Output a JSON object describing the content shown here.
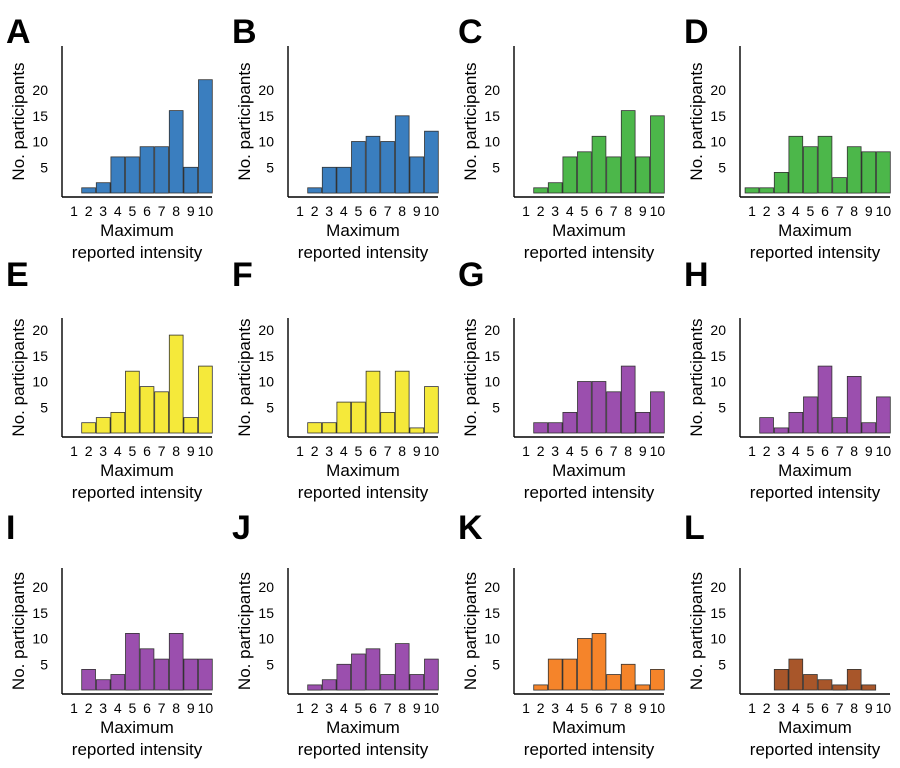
{
  "figure": {
    "ylabel": "No. participants",
    "xlabel_line1": "Maximum",
    "xlabel_line2": "reported intensity",
    "yticks": [
      5,
      10,
      15,
      20
    ],
    "xticks": [
      1,
      2,
      3,
      4,
      5,
      6,
      7,
      8,
      9,
      10
    ]
  },
  "colors": {
    "blue": "#3a7ebf",
    "green": "#4cb74a",
    "yellow": "#f5e93a",
    "purple": "#9b4fae",
    "orange": "#f5842a",
    "brown": "#a8562a"
  },
  "chart_data": [
    {
      "type": "bar",
      "panel": "A",
      "color": "blue",
      "categories": [
        1,
        2,
        3,
        4,
        5,
        6,
        7,
        8,
        9,
        10
      ],
      "values": [
        0,
        1,
        2,
        7,
        7,
        9,
        9,
        16,
        5,
        22
      ],
      "ylim": [
        0,
        22
      ],
      "xlabel": "Maximum reported intensity",
      "ylabel": "No. participants"
    },
    {
      "type": "bar",
      "panel": "B",
      "color": "blue",
      "categories": [
        1,
        2,
        3,
        4,
        5,
        6,
        7,
        8,
        9,
        10
      ],
      "values": [
        0,
        1,
        5,
        5,
        10,
        11,
        10,
        15,
        7,
        12
      ],
      "ylim": [
        0,
        22
      ],
      "xlabel": "Maximum reported intensity",
      "ylabel": "No. participants"
    },
    {
      "type": "bar",
      "panel": "C",
      "color": "green",
      "categories": [
        1,
        2,
        3,
        4,
        5,
        6,
        7,
        8,
        9,
        10
      ],
      "values": [
        0,
        1,
        2,
        7,
        8,
        11,
        7,
        16,
        7,
        15
      ],
      "ylim": [
        0,
        22
      ],
      "xlabel": "Maximum reported intensity",
      "ylabel": "No. participants"
    },
    {
      "type": "bar",
      "panel": "D",
      "color": "green",
      "categories": [
        1,
        2,
        3,
        4,
        5,
        6,
        7,
        8,
        9,
        10
      ],
      "values": [
        1,
        1,
        4,
        11,
        9,
        11,
        3,
        9,
        8,
        8
      ],
      "ylim": [
        0,
        22
      ],
      "xlabel": "Maximum reported intensity",
      "ylabel": "No. participants"
    },
    {
      "type": "bar",
      "panel": "E",
      "color": "yellow",
      "categories": [
        1,
        2,
        3,
        4,
        5,
        6,
        7,
        8,
        9,
        10
      ],
      "values": [
        0,
        2,
        3,
        4,
        12,
        9,
        8,
        19,
        3,
        13
      ],
      "ylim": [
        0,
        20
      ],
      "xlabel": "Maximum reported intensity",
      "ylabel": "No. participants"
    },
    {
      "type": "bar",
      "panel": "F",
      "color": "yellow",
      "categories": [
        1,
        2,
        3,
        4,
        5,
        6,
        7,
        8,
        9,
        10
      ],
      "values": [
        0,
        2,
        2,
        6,
        6,
        12,
        4,
        12,
        1,
        9
      ],
      "ylim": [
        0,
        20
      ],
      "xlabel": "Maximum reported intensity",
      "ylabel": "No. participants"
    },
    {
      "type": "bar",
      "panel": "G",
      "color": "purple",
      "categories": [
        1,
        2,
        3,
        4,
        5,
        6,
        7,
        8,
        9,
        10
      ],
      "values": [
        0,
        2,
        2,
        4,
        10,
        10,
        8,
        13,
        4,
        8
      ],
      "ylim": [
        0,
        20
      ],
      "xlabel": "Maximum reported intensity",
      "ylabel": "No. participants"
    },
    {
      "type": "bar",
      "panel": "H",
      "color": "purple",
      "categories": [
        1,
        2,
        3,
        4,
        5,
        6,
        7,
        8,
        9,
        10
      ],
      "values": [
        0,
        3,
        1,
        4,
        7,
        13,
        3,
        11,
        2,
        7
      ],
      "ylim": [
        0,
        20
      ],
      "xlabel": "Maximum reported intensity",
      "ylabel": "No. participants"
    },
    {
      "type": "bar",
      "panel": "I",
      "color": "purple",
      "categories": [
        1,
        2,
        3,
        4,
        5,
        6,
        7,
        8,
        9,
        10
      ],
      "values": [
        0,
        4,
        2,
        3,
        11,
        8,
        6,
        11,
        6,
        6
      ],
      "ylim": [
        0,
        20
      ],
      "xlabel": "Maximum reported intensity",
      "ylabel": "No. participants"
    },
    {
      "type": "bar",
      "panel": "J",
      "color": "purple",
      "categories": [
        1,
        2,
        3,
        4,
        5,
        6,
        7,
        8,
        9,
        10
      ],
      "values": [
        0,
        1,
        2,
        5,
        7,
        8,
        3,
        9,
        3,
        6
      ],
      "ylim": [
        0,
        20
      ],
      "xlabel": "Maximum reported intensity",
      "ylabel": "No. participants"
    },
    {
      "type": "bar",
      "panel": "K",
      "color": "orange",
      "categories": [
        1,
        2,
        3,
        4,
        5,
        6,
        7,
        8,
        9,
        10
      ],
      "values": [
        0,
        1,
        6,
        6,
        10,
        11,
        3,
        5,
        1,
        4
      ],
      "ylim": [
        0,
        20
      ],
      "xlabel": "Maximum reported intensity",
      "ylabel": "No. participants"
    },
    {
      "type": "bar",
      "panel": "L",
      "color": "brown",
      "categories": [
        1,
        2,
        3,
        4,
        5,
        6,
        7,
        8,
        9,
        10
      ],
      "values": [
        0,
        0,
        4,
        6,
        3,
        2,
        1,
        4,
        1,
        0
      ],
      "ylim": [
        0,
        20
      ],
      "xlabel": "Maximum reported intensity",
      "ylabel": "No. participants"
    }
  ]
}
